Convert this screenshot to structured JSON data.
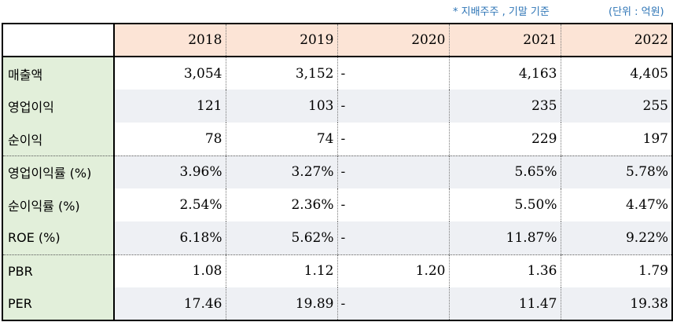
{
  "notes": {
    "basis": "* 지배주주 , 기말 기준",
    "unit": "(단위 : 억원)"
  },
  "table": {
    "years": [
      "2018",
      "2019",
      "2020",
      "2021",
      "2022"
    ],
    "rows": [
      {
        "label": "매출액",
        "values": [
          "3,054",
          "3,152",
          "-",
          "4,163",
          "4,405"
        ]
      },
      {
        "label": "영업이익",
        "values": [
          "121",
          "103",
          "-",
          "235",
          "255"
        ]
      },
      {
        "label": "순이익",
        "values": [
          "78",
          "74",
          "-",
          "229",
          "197"
        ]
      },
      {
        "label": "영업이익률 (%)",
        "values": [
          "3.96%",
          "3.27%",
          "-",
          "5.65%",
          "5.78%"
        ]
      },
      {
        "label": "순이익률 (%)",
        "values": [
          "2.54%",
          "2.36%",
          "-",
          "5.50%",
          "4.47%"
        ]
      },
      {
        "label": "ROE (%)",
        "values": [
          "6.18%",
          "5.62%",
          "-",
          "11.87%",
          "9.22%"
        ]
      },
      {
        "label": "PBR",
        "values": [
          "1.08",
          "1.12",
          "1.20",
          "1.36",
          "1.79"
        ]
      },
      {
        "label": "PER",
        "values": [
          "17.46",
          "19.89",
          "-",
          "11.47",
          "19.38"
        ]
      }
    ]
  }
}
